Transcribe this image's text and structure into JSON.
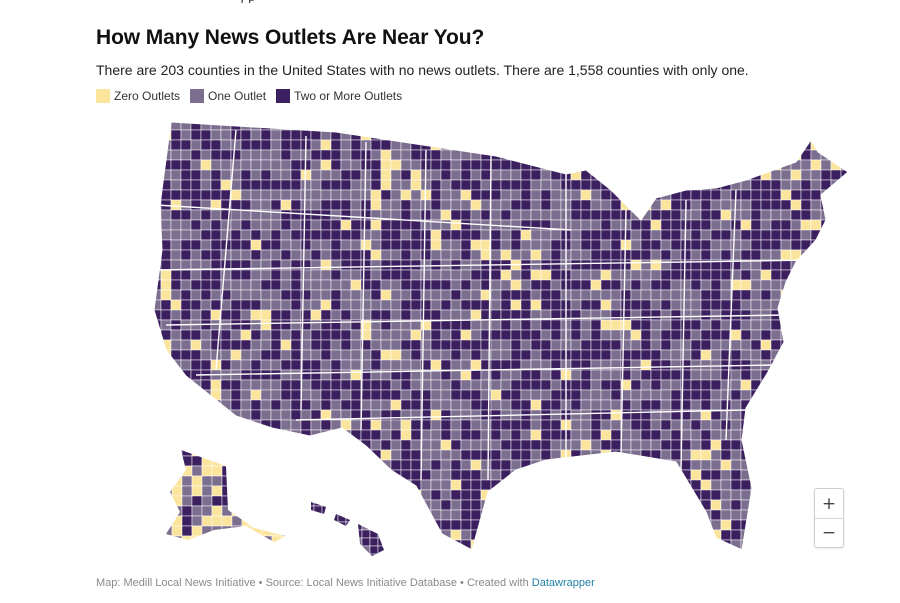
{
  "header": {
    "clipped_text": "j                    p",
    "title": "How Many News Outlets Are Near You?",
    "subtitle": "There are 203 counties in the United States with no news outlets. There are 1,558 counties with only one."
  },
  "legend": [
    {
      "label": "Zero Outlets",
      "color": "#fbe49c"
    },
    {
      "label": "One Outlet",
      "color": "#7b6e8e"
    },
    {
      "label": "Two or More Outlets",
      "color": "#3b1f5e"
    }
  ],
  "map": {
    "colors": {
      "zero": "#fbe49c",
      "one": "#7b6e8e",
      "two_plus": "#3b1f5e",
      "border": "#ffffff"
    }
  },
  "zoom": {
    "in_label": "+",
    "out_label": "−"
  },
  "footer": {
    "map_credit": "Map: Medill Local News Initiative",
    "source": "Source: Local News Initiative Database",
    "created_with": "Created with",
    "tool": "Datawrapper"
  }
}
